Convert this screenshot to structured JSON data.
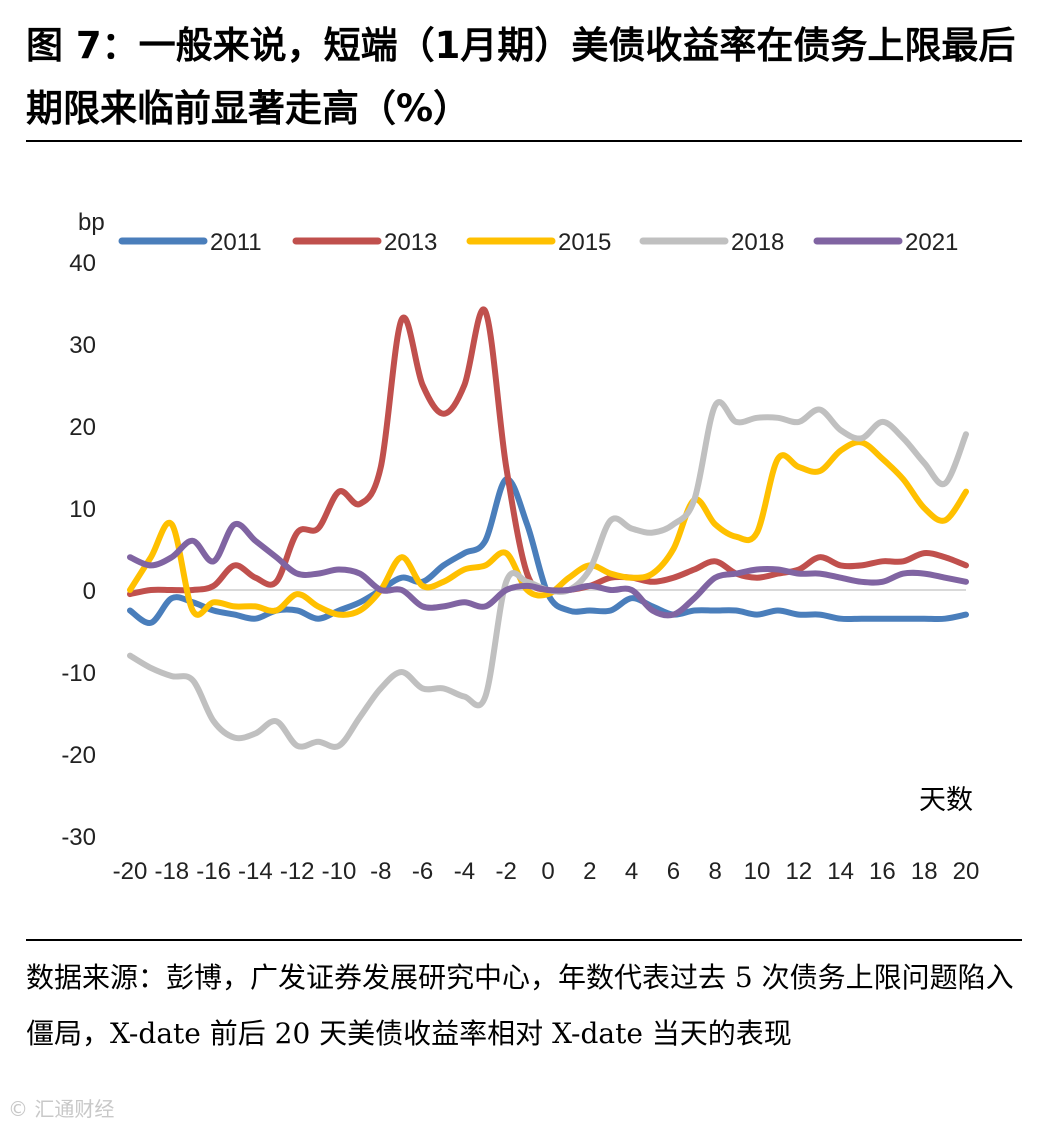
{
  "title": "图 7：一般来说，短端（1月期）美债收益率在债务上限最后期限来临前显著走高（%）",
  "source_note": "数据来源：彭博，广发证券发展研究中心，年数代表过去 5 次债务上限问题陷入僵局，X-date 前后 20 天美债收益率相对 X-date 当天的表现",
  "watermark": "© 汇通财经",
  "chart_data": {
    "type": "line",
    "title": "",
    "ylabel": "bp",
    "xlabel": "天数",
    "ylim": [
      -30,
      40
    ],
    "yticks": [
      "40",
      "30",
      "20",
      "10",
      "0",
      "-10",
      "-20",
      "-30"
    ],
    "xticks": [
      "-20",
      "-18",
      "-16",
      "-14",
      "-12",
      "-10",
      "-8",
      "-6",
      "-4",
      "-2",
      "0",
      "2",
      "4",
      "6",
      "8",
      "10",
      "12",
      "14",
      "16",
      "18",
      "20"
    ],
    "x": [
      -20,
      -19,
      -18,
      -17,
      -16,
      -15,
      -14,
      -13,
      -12,
      -11,
      -10,
      -9,
      -8,
      -7,
      -6,
      -5,
      -4,
      -3,
      -2,
      -1,
      0,
      1,
      2,
      3,
      4,
      5,
      6,
      7,
      8,
      9,
      10,
      11,
      12,
      13,
      14,
      15,
      16,
      17,
      18,
      19,
      20
    ],
    "legend_position": "top",
    "series": [
      {
        "name": "2011",
        "color": "#4A7EBB",
        "values": [
          -2.5,
          -4,
          -1,
          -1.5,
          -2.5,
          -3,
          -3.5,
          -2.5,
          -2.5,
          -3.5,
          -2.5,
          -1.5,
          0,
          1.5,
          1,
          3,
          4.5,
          6,
          13.5,
          8,
          -0.5,
          -2.5,
          -2.5,
          -2.5,
          -1,
          -2,
          -3,
          -2.5,
          -2.5,
          -2.5,
          -3,
          -2.5,
          -3,
          -3,
          -3.5,
          -3.5,
          -3.5,
          -3.5,
          -3.5,
          -3.5,
          -3
        ]
      },
      {
        "name": "2013",
        "color": "#C0504D",
        "values": [
          -0.5,
          0,
          0,
          0,
          0.5,
          3,
          1.5,
          1,
          7,
          7.5,
          12,
          10.5,
          15,
          33,
          25,
          21.5,
          25,
          34,
          15,
          2,
          0,
          0,
          0.5,
          1.5,
          1.5,
          1,
          1.5,
          2.5,
          3.5,
          2,
          1.5,
          2,
          2.5,
          4,
          3,
          3,
          3.5,
          3.5,
          4.5,
          4,
          3
        ]
      },
      {
        "name": "2015",
        "color": "#FFC000",
        "values": [
          0,
          4,
          8,
          -2.5,
          -1.5,
          -2,
          -2,
          -2.5,
          -0.5,
          -2,
          -3,
          -2.5,
          0,
          4,
          0.5,
          1,
          2.5,
          3,
          4.5,
          0,
          -0.5,
          1.5,
          3,
          2,
          1.5,
          2,
          5,
          11,
          8,
          6.5,
          7,
          16,
          15,
          14.5,
          17,
          18,
          16,
          13.5,
          10,
          8.5,
          12
        ]
      },
      {
        "name": "2018",
        "color": "#C0C0C0",
        "values": [
          -8,
          -9.5,
          -10.5,
          -11,
          -16,
          -18,
          -17.5,
          -16,
          -19,
          -18.5,
          -19,
          -15.5,
          -12,
          -10,
          -12,
          -12,
          -13,
          -13,
          1,
          1,
          0,
          0,
          2.5,
          8.5,
          7.5,
          7,
          8,
          11,
          22.5,
          20.5,
          21,
          21,
          20.5,
          22,
          19.5,
          18.5,
          20.5,
          18.5,
          15.5,
          13,
          19
        ]
      },
      {
        "name": "2021",
        "color": "#8064A2",
        "values": [
          4,
          3,
          4,
          6,
          3.5,
          8,
          6,
          4,
          2,
          2,
          2.5,
          2,
          0,
          0,
          -2,
          -2,
          -1.5,
          -2,
          0,
          0.5,
          0,
          0,
          0.5,
          0,
          0,
          -2.5,
          -3,
          -1,
          1.5,
          2,
          2.5,
          2.5,
          2,
          2,
          1.5,
          1,
          1,
          2,
          2,
          1.5,
          1
        ]
      }
    ]
  }
}
